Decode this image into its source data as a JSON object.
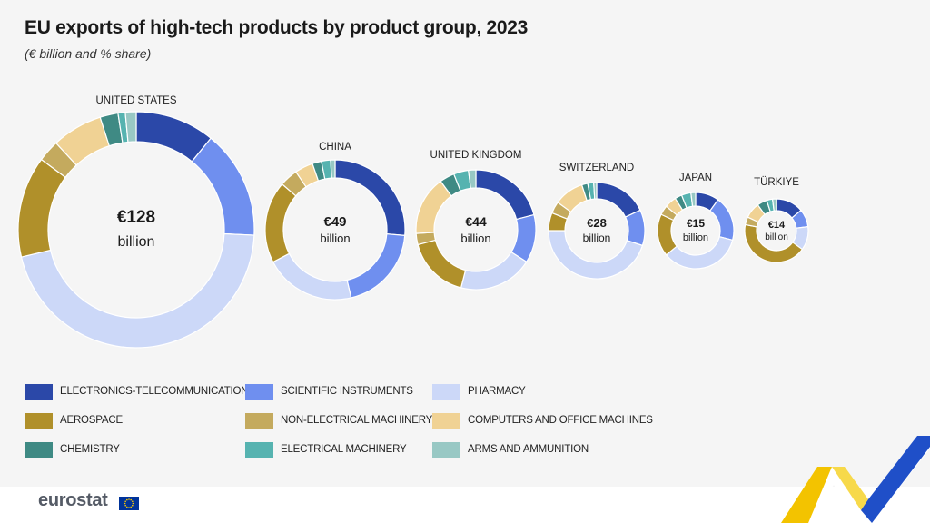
{
  "header": {
    "title": "EU exports of high-tech products by product group, 2023",
    "subtitle": "(€ billion and % share)"
  },
  "colors": {
    "electronics": "#2b48a8",
    "scientific": "#6f8fef",
    "pharmacy": "#ccd8f8",
    "aerospace": "#b0902a",
    "non_electrical": "#c4aa5e",
    "computers": "#f0d294",
    "chemistry": "#3f8a84",
    "electrical": "#56b3b0",
    "arms": "#98c8c4"
  },
  "chart_data": {
    "type": "donut",
    "title": "EU exports of high-tech products by product group, 2023",
    "subtitle": "(€ billion and % share)",
    "categories": [
      "ELECTRONICS-TELECOMMUNICATIONS",
      "SCIENTIFIC INSTRUMENTS",
      "PHARMACY",
      "AEROSPACE",
      "NON-ELECTRICAL MACHINERY",
      "COMPUTERS AND OFFICE MACHINES",
      "CHEMISTRY",
      "ELECTRICAL MACHINERY",
      "ARMS AND AMMUNITION"
    ],
    "color_keys": [
      "electronics",
      "scientific",
      "pharmacy",
      "aerospace",
      "non_electrical",
      "computers",
      "chemistry",
      "electrical",
      "arms"
    ],
    "series": [
      {
        "name": "UNITED STATES",
        "value_line1": "€128",
        "value_line2": "billion",
        "total": 128,
        "shares": [
          11,
          15,
          46,
          14,
          3,
          7,
          2.5,
          1,
          1.5
        ]
      },
      {
        "name": "CHINA",
        "value_line1": "€49",
        "value_line2": "billion",
        "total": 49,
        "shares": [
          25,
          19,
          20,
          18,
          4,
          4,
          2,
          2,
          1
        ]
      },
      {
        "name": "UNITED KINGDOM",
        "value_line1": "€44",
        "value_line2": "billion",
        "total": 44,
        "shares": [
          21,
          13,
          20,
          17,
          3,
          16,
          4,
          4,
          2
        ]
      },
      {
        "name": "SWITZERLAND",
        "value_line1": "€28",
        "value_line2": "billion",
        "total": 28,
        "shares": [
          18,
          12,
          45,
          6,
          4,
          10,
          2,
          2,
          1
        ]
      },
      {
        "name": "JAPAN",
        "value_line1": "€15",
        "value_line2": "billion",
        "total": 15,
        "shares": [
          10,
          19,
          35,
          18,
          4,
          5,
          3,
          4,
          2
        ]
      },
      {
        "name": "TÜRKIYE",
        "value_line1": "€14",
        "value_line2": "billion",
        "total": 14,
        "shares": [
          14,
          9,
          12,
          43,
          4,
          8,
          5,
          3,
          2
        ]
      }
    ]
  },
  "legend": [
    {
      "label": "ELECTRONICS-TELECOMMUNICATIONS",
      "color_key": "electronics"
    },
    {
      "label": "SCIENTIFIC INSTRUMENTS",
      "color_key": "scientific"
    },
    {
      "label": "PHARMACY",
      "color_key": "pharmacy"
    },
    {
      "label": "AEROSPACE",
      "color_key": "aerospace"
    },
    {
      "label": "NON-ELECTRICAL MACHINERY",
      "color_key": "non_electrical"
    },
    {
      "label": "COMPUTERS AND OFFICE MACHINES",
      "color_key": "computers"
    },
    {
      "label": "CHEMISTRY",
      "color_key": "chemistry"
    },
    {
      "label": "ELECTRICAL MACHINERY",
      "color_key": "electrical"
    },
    {
      "label": "ARMS AND AMMUNITION",
      "color_key": "arms"
    }
  ],
  "footer": {
    "logo": "eurostat",
    "flag_icon": "eu-flag-icon",
    "swoosh_icon": "eurostat-swoosh-icon"
  }
}
